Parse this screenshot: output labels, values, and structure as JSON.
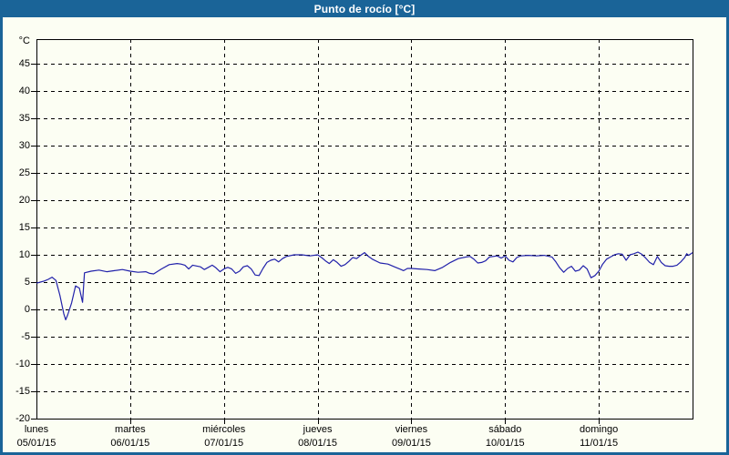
{
  "window": {
    "title": "Punto de rocío [°C]"
  },
  "colors": {
    "frame": "#1a6498",
    "title_text": "#ffffff",
    "panel_bg": "#fcfef3",
    "grid": "#000000",
    "label_text": "#000000",
    "line": "#2121aa"
  },
  "chart_data": {
    "type": "line",
    "title": "Punto de rocío [°C]",
    "ylabel": "°C",
    "xlabel": "",
    "ylim": [
      -20,
      49.5
    ],
    "grid": "dashed",
    "legend_position": "none",
    "y_tick_values": [
      45,
      40,
      35,
      30,
      25,
      20,
      15,
      10,
      5,
      0,
      -5,
      -10,
      -15,
      -20
    ],
    "x_axis": {
      "hours_total": 168,
      "hours_per_day": 24,
      "days": [
        {
          "name": "lunes",
          "date": "05/01/15"
        },
        {
          "name": "martes",
          "date": "06/01/15"
        },
        {
          "name": "miércoles",
          "date": "07/01/15"
        },
        {
          "name": "jueves",
          "date": "08/01/15"
        },
        {
          "name": "viernes",
          "date": "09/01/15"
        },
        {
          "name": "sábado",
          "date": "10/01/15"
        },
        {
          "name": "domingo",
          "date": "11/01/15"
        }
      ]
    },
    "series": [
      {
        "name": "Punto de rocío",
        "unit": "°C",
        "color": "#2121aa",
        "points": [
          [
            0,
            4.8
          ],
          [
            1,
            5.0
          ],
          [
            2,
            5.2
          ],
          [
            3,
            5.5
          ],
          [
            4,
            5.9
          ],
          [
            5,
            5.3
          ],
          [
            6,
            2.6
          ],
          [
            7,
            -0.8
          ],
          [
            7.5,
            -1.9
          ],
          [
            8,
            -1.0
          ],
          [
            9,
            1.2
          ],
          [
            10,
            4.3
          ],
          [
            11,
            3.9
          ],
          [
            11.8,
            1.3
          ],
          [
            12.3,
            6.7
          ],
          [
            14,
            7.0
          ],
          [
            16,
            7.2
          ],
          [
            18,
            6.9
          ],
          [
            20,
            7.1
          ],
          [
            22,
            7.3
          ],
          [
            24,
            7.0
          ],
          [
            26,
            6.8
          ],
          [
            28,
            6.9
          ],
          [
            29,
            6.6
          ],
          [
            30,
            6.5
          ],
          [
            32,
            7.4
          ],
          [
            34,
            8.2
          ],
          [
            36,
            8.4
          ],
          [
            37,
            8.3
          ],
          [
            38,
            8.1
          ],
          [
            39,
            7.4
          ],
          [
            40,
            8.1
          ],
          [
            42,
            7.8
          ],
          [
            43,
            7.3
          ],
          [
            44,
            7.7
          ],
          [
            45,
            8.1
          ],
          [
            46,
            7.6
          ],
          [
            47,
            6.9
          ],
          [
            48,
            7.4
          ],
          [
            49,
            7.7
          ],
          [
            50,
            7.4
          ],
          [
            51,
            6.6
          ],
          [
            52,
            7.0
          ],
          [
            53,
            7.8
          ],
          [
            54,
            8.0
          ],
          [
            55,
            7.4
          ],
          [
            56,
            6.3
          ],
          [
            57,
            6.2
          ],
          [
            58,
            7.5
          ],
          [
            59,
            8.6
          ],
          [
            60,
            9.0
          ],
          [
            61,
            9.2
          ],
          [
            62,
            8.7
          ],
          [
            63,
            9.3
          ],
          [
            64,
            9.7
          ],
          [
            66,
            10.0
          ],
          [
            68,
            10.0
          ],
          [
            70,
            9.8
          ],
          [
            72,
            10.0
          ],
          [
            73,
            9.5
          ],
          [
            74,
            8.9
          ],
          [
            75,
            8.4
          ],
          [
            76,
            9.1
          ],
          [
            77,
            8.6
          ],
          [
            78,
            7.9
          ],
          [
            79,
            8.2
          ],
          [
            80,
            8.8
          ],
          [
            81,
            9.5
          ],
          [
            82,
            9.3
          ],
          [
            83,
            9.9
          ],
          [
            84,
            10.4
          ],
          [
            85,
            9.7
          ],
          [
            86,
            9.2
          ],
          [
            88,
            8.5
          ],
          [
            90,
            8.3
          ],
          [
            92,
            7.7
          ],
          [
            93,
            7.4
          ],
          [
            94,
            7.1
          ],
          [
            95,
            7.5
          ],
          [
            96,
            7.5
          ],
          [
            98,
            7.4
          ],
          [
            100,
            7.3
          ],
          [
            102,
            7.1
          ],
          [
            104,
            7.7
          ],
          [
            106,
            8.6
          ],
          [
            108,
            9.3
          ],
          [
            110,
            9.6
          ],
          [
            111,
            9.7
          ],
          [
            112,
            9.2
          ],
          [
            113,
            8.5
          ],
          [
            114,
            8.6
          ],
          [
            115,
            8.9
          ],
          [
            116,
            9.6
          ],
          [
            118,
            9.8
          ],
          [
            119,
            9.4
          ],
          [
            120,
            9.8
          ],
          [
            121,
            9.0
          ],
          [
            122,
            8.7
          ],
          [
            123,
            9.5
          ],
          [
            124,
            9.8
          ],
          [
            126,
            9.9
          ],
          [
            128,
            9.8
          ],
          [
            130,
            9.9
          ],
          [
            132,
            9.6
          ],
          [
            133,
            8.7
          ],
          [
            134,
            7.6
          ],
          [
            135,
            6.8
          ],
          [
            136,
            7.5
          ],
          [
            137,
            7.9
          ],
          [
            138,
            7.0
          ],
          [
            139,
            7.2
          ],
          [
            140,
            8.0
          ],
          [
            141,
            7.4
          ],
          [
            142,
            5.8
          ],
          [
            143,
            6.2
          ],
          [
            144,
            7.0
          ],
          [
            145,
            8.3
          ],
          [
            146,
            9.2
          ],
          [
            147,
            9.6
          ],
          [
            148,
            10.0
          ],
          [
            149,
            10.2
          ],
          [
            150,
            10.1
          ],
          [
            151,
            9.0
          ],
          [
            152,
            10.0
          ],
          [
            153,
            10.2
          ],
          [
            154,
            10.5
          ],
          [
            155,
            10.1
          ],
          [
            156,
            9.4
          ],
          [
            157,
            8.6
          ],
          [
            158,
            8.2
          ],
          [
            159,
            9.7
          ],
          [
            160,
            8.6
          ],
          [
            161,
            8.0
          ],
          [
            162,
            7.9
          ],
          [
            163,
            7.9
          ],
          [
            164,
            8.1
          ],
          [
            165,
            8.7
          ],
          [
            166,
            9.5
          ],
          [
            166.5,
            10.2
          ],
          [
            167,
            9.9
          ],
          [
            168,
            10.4
          ]
        ]
      }
    ]
  }
}
